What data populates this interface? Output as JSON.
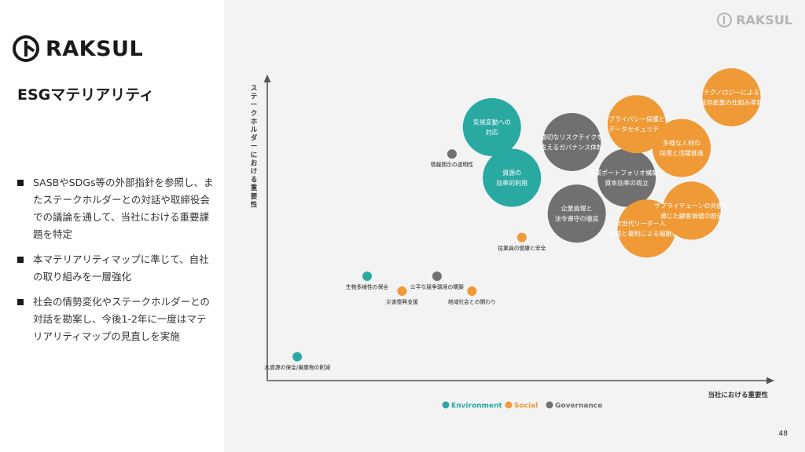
{
  "brand": {
    "logo_text": "RAKSUL",
    "corner_logo_text": "RAKSUL"
  },
  "slide": {
    "title": "ESGマテリアリティ",
    "bullets": [
      "SASBやSDGs等の外部指針を参照し、またステークホルダーとの対話や取締役会での議論を通して、当社における重要課題を特定",
      "本マテリアリティマップに準じて、自社の取り組みを一層強化",
      "社会の情勢変化やステークホルダーとの対話を勘案し、今後1-2年に一度はマテリアリティマップの見直しを実施"
    ],
    "page_number": "48"
  },
  "colors": {
    "Environment": "#2aa9a3",
    "Social": "#ef9a36",
    "Governance": "#707070"
  },
  "chart_data": {
    "type": "scatter",
    "xlabel": "当社における重要性",
    "ylabel": "ステークホルダーにおける重要性",
    "xlim": [
      0,
      100
    ],
    "ylim": [
      0,
      100
    ],
    "legend": [
      {
        "name": "Environment",
        "category": "Environment"
      },
      {
        "name": "Social",
        "category": "Social"
      },
      {
        "name": "Governance",
        "category": "Governance"
      }
    ],
    "points": [
      {
        "label": [
          "水資源の保全/廃棄物の削減"
        ],
        "category": "Environment",
        "x": 6,
        "y": 8,
        "size": "small"
      },
      {
        "label": [
          "生物多様性の保全"
        ],
        "category": "Environment",
        "x": 20,
        "y": 35,
        "size": "small"
      },
      {
        "label": [
          "災害復興支援"
        ],
        "category": "Social",
        "x": 27,
        "y": 30,
        "size": "small"
      },
      {
        "label": [
          "公平な競争環境の構築"
        ],
        "category": "Governance",
        "x": 34,
        "y": 35,
        "size": "small"
      },
      {
        "label": [
          "地域社会との関わり"
        ],
        "category": "Social",
        "x": 41,
        "y": 30,
        "size": "small"
      },
      {
        "label": [
          "従業員の健康と安全"
        ],
        "category": "Social",
        "x": 51,
        "y": 48,
        "size": "small"
      },
      {
        "label": [
          "情報開示の透明性"
        ],
        "category": "Governance",
        "x": 37,
        "y": 76,
        "size": "small"
      },
      {
        "label": [
          "気候変動への",
          "対応"
        ],
        "category": "Environment",
        "x": 45,
        "y": 85,
        "size": "large"
      },
      {
        "label": [
          "資源の",
          "効率的利用"
        ],
        "category": "Environment",
        "x": 49,
        "y": 68,
        "size": "large"
      },
      {
        "label": [
          "適切なリスクテイクを",
          "支えるガバナンス体制"
        ],
        "category": "Governance",
        "x": 61,
        "y": 80,
        "size": "large"
      },
      {
        "label": [
          "企業倫理と",
          "法令遵守の徹底"
        ],
        "category": "Governance",
        "x": 62,
        "y": 56,
        "size": "large"
      },
      {
        "label": [
          "事業ポートフォリオ構築と",
          "資本効率の両立"
        ],
        "category": "Governance",
        "x": 72,
        "y": 68,
        "size": "large"
      },
      {
        "label": [
          "プライバシー保護と",
          "データセキュリティ"
        ],
        "category": "Social",
        "x": 74,
        "y": 86,
        "size": "large"
      },
      {
        "label": [
          "次世代リーダー人材の",
          "育成と複利による報酬還元"
        ],
        "category": "Social",
        "x": 76,
        "y": 51,
        "size": "large"
      },
      {
        "label": [
          "多様な人材の",
          "採用と活躍推進"
        ],
        "category": "Social",
        "x": 83,
        "y": 78,
        "size": "large"
      },
      {
        "label": [
          "サプライチェーンの共創を",
          "通じた顧客価値の創造"
        ],
        "category": "Social",
        "x": 85,
        "y": 57,
        "size": "large"
      },
      {
        "label": [
          "テクノロジーによる",
          "既存産業の仕組み革新"
        ],
        "category": "Social",
        "x": 93,
        "y": 95,
        "size": "large"
      }
    ]
  }
}
